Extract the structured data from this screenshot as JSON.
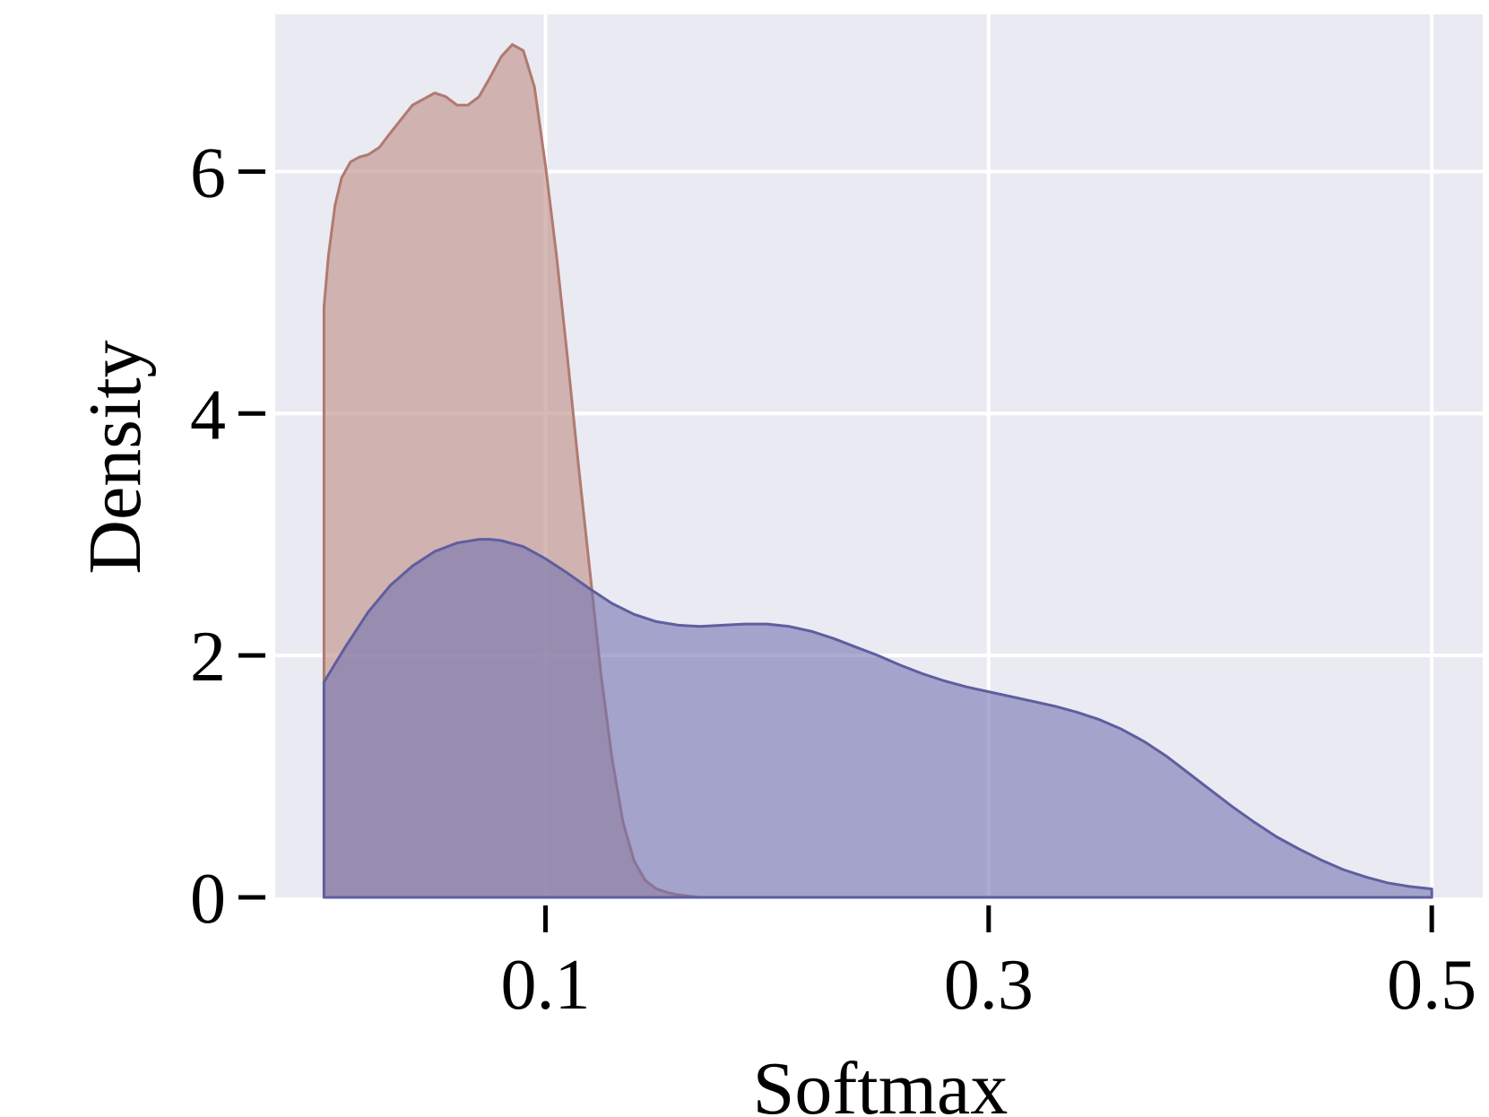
{
  "chart_data": {
    "type": "area",
    "title": "",
    "xlabel": "Softmax",
    "ylabel": "Density",
    "xlim": [
      -0.022,
      0.523
    ],
    "ylim": [
      0,
      7.3
    ],
    "x_ticks": [
      {
        "value": 0.1,
        "label": "0.1"
      },
      {
        "value": 0.3,
        "label": "0.3"
      },
      {
        "value": 0.5,
        "label": "0.5"
      }
    ],
    "y_ticks": [
      {
        "value": 0,
        "label": "0"
      },
      {
        "value": 2,
        "label": "2"
      },
      {
        "value": 4,
        "label": "4"
      },
      {
        "value": 6,
        "label": "6"
      }
    ],
    "grid": true,
    "legend": "none",
    "colors": {
      "plot_background": "#EAEAF2",
      "grid": "#FFFFFF"
    },
    "series": [
      {
        "color": "#C09088",
        "line_color": "#B07A70",
        "fill_opacity": 0.62,
        "x": [
          0.0,
          0.0,
          0.002,
          0.005,
          0.008,
          0.012,
          0.016,
          0.02,
          0.025,
          0.03,
          0.04,
          0.05,
          0.055,
          0.06,
          0.065,
          0.07,
          0.075,
          0.08,
          0.085,
          0.09,
          0.095,
          0.1,
          0.105,
          0.11,
          0.115,
          0.12,
          0.125,
          0.13,
          0.135,
          0.14,
          0.145,
          0.15,
          0.155,
          0.16,
          0.165,
          0.17,
          0.175,
          0.18,
          0.185,
          0.19,
          0.195
        ],
        "y": [
          0.0,
          4.88,
          5.3,
          5.72,
          5.95,
          6.08,
          6.12,
          6.14,
          6.2,
          6.32,
          6.55,
          6.65,
          6.62,
          6.55,
          6.55,
          6.62,
          6.78,
          6.95,
          7.05,
          7.0,
          6.7,
          6.05,
          5.3,
          4.45,
          3.55,
          2.7,
          1.85,
          1.15,
          0.62,
          0.3,
          0.14,
          0.07,
          0.04,
          0.02,
          0.01,
          0.0,
          0.0,
          0.0,
          0.0,
          0.0,
          0.0
        ]
      },
      {
        "color": "#7070B0",
        "line_color": "#5E5EA0",
        "fill_opacity": 0.58,
        "x": [
          0.0,
          0.0,
          0.01,
          0.02,
          0.03,
          0.04,
          0.05,
          0.06,
          0.07,
          0.075,
          0.08,
          0.09,
          0.1,
          0.11,
          0.12,
          0.13,
          0.14,
          0.15,
          0.16,
          0.17,
          0.18,
          0.19,
          0.2,
          0.21,
          0.22,
          0.23,
          0.24,
          0.25,
          0.26,
          0.27,
          0.28,
          0.29,
          0.3,
          0.31,
          0.32,
          0.33,
          0.34,
          0.35,
          0.36,
          0.37,
          0.38,
          0.39,
          0.4,
          0.41,
          0.42,
          0.43,
          0.44,
          0.45,
          0.46,
          0.47,
          0.48,
          0.49,
          0.5,
          0.5
        ],
        "y": [
          0.0,
          1.78,
          2.08,
          2.36,
          2.58,
          2.74,
          2.86,
          2.93,
          2.96,
          2.96,
          2.95,
          2.9,
          2.8,
          2.68,
          2.55,
          2.43,
          2.34,
          2.28,
          2.25,
          2.24,
          2.25,
          2.26,
          2.26,
          2.24,
          2.2,
          2.14,
          2.07,
          2.0,
          1.92,
          1.85,
          1.79,
          1.74,
          1.7,
          1.66,
          1.62,
          1.58,
          1.53,
          1.47,
          1.39,
          1.29,
          1.17,
          1.03,
          0.89,
          0.75,
          0.62,
          0.5,
          0.4,
          0.31,
          0.23,
          0.17,
          0.12,
          0.09,
          0.07,
          0.0
        ]
      }
    ]
  }
}
